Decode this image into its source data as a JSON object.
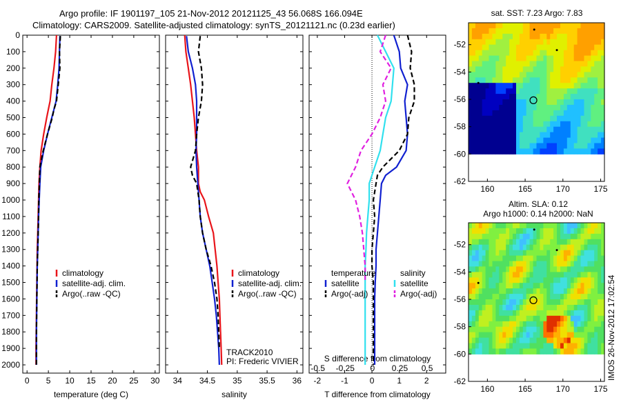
{
  "header": {
    "title_line1": "Argo profile: IF 1901197_105 21-Nov-2012 20121125_43 56.068S 166.094E",
    "title_line2": "Climatology: CARS2009. Satellite-adjusted climatology: synTS_20121121.nc (0.23d earlier)"
  },
  "side_stamp": "IMOS 26-Nov-2012 17:02:54",
  "colors": {
    "climatology": "#e8141a",
    "satellite": "#1020d0",
    "argo": "#000000",
    "salinity_satellite": "#30e0ee",
    "salinity_argo": "#e020e0"
  },
  "chart_data": [
    {
      "type": "line",
      "panel": "temperature",
      "xlabel": "temperature (deg C)",
      "ylabel": "",
      "xlim": [
        -1,
        31
      ],
      "ylim": [
        2050,
        0
      ],
      "xticks": [
        "0",
        "5",
        "10",
        "15",
        "20",
        "25",
        "30"
      ],
      "yticks": [
        "0",
        "100",
        "200",
        "300",
        "400",
        "500",
        "600",
        "700",
        "800",
        "900",
        "1000",
        "1100",
        "1200",
        "1300",
        "1400",
        "1500",
        "1600",
        "1700",
        "1800",
        "1900",
        "2000"
      ],
      "legend": [
        "climatology",
        "satellite-adj. clim.",
        "Argo(..raw -QC)"
      ],
      "series": [
        {
          "name": "climatology",
          "style": "solid",
          "color": "#e8141a",
          "x": [
            6.9,
            6.7,
            6.3,
            5.8,
            5.4,
            5.0,
            4.6,
            3.9,
            3.3,
            3.0,
            2.8,
            2.7,
            2.6,
            2.5,
            2.4,
            2.35,
            2.3,
            2.25,
            2.2,
            2.15,
            2.1,
            2.1
          ],
          "y": [
            0,
            100,
            200,
            300,
            400,
            450,
            500,
            600,
            700,
            800,
            900,
            1000,
            1100,
            1200,
            1300,
            1400,
            1500,
            1600,
            1700,
            1800,
            1900,
            2000
          ]
        },
        {
          "name": "satellite-adj. clim.",
          "style": "solid",
          "color": "#1020d0",
          "x": [
            7.7,
            7.6,
            7.5,
            7.2,
            6.8,
            6.3,
            5.8,
            4.8,
            3.9,
            3.2,
            3.0,
            2.85,
            2.7,
            2.6,
            2.5,
            2.4,
            2.35,
            2.3,
            2.25,
            2.2,
            2.2
          ],
          "y": [
            5,
            100,
            200,
            300,
            400,
            450,
            500,
            600,
            700,
            800,
            900,
            1000,
            1100,
            1200,
            1300,
            1400,
            1500,
            1600,
            1700,
            1800,
            2000
          ]
        },
        {
          "name": "Argo(..raw -QC)",
          "style": "dashed",
          "color": "#000000",
          "x": [
            7.8,
            7.6,
            7.7,
            7.3,
            6.9,
            6.3,
            5.9,
            4.8,
            3.8,
            3.0,
            2.9,
            2.75,
            2.7,
            2.6,
            2.5,
            2.4,
            2.35,
            2.3,
            2.25,
            2.2,
            2.2
          ],
          "y": [
            5,
            100,
            200,
            300,
            400,
            450,
            500,
            600,
            700,
            800,
            900,
            1000,
            1100,
            1200,
            1300,
            1400,
            1500,
            1600,
            1700,
            1800,
            2000
          ]
        }
      ]
    },
    {
      "type": "line",
      "panel": "salinity",
      "xlabel": "salinity",
      "xlim": [
        33.8,
        36.1
      ],
      "ylim": [
        2050,
        0
      ],
      "xticks": [
        "34",
        "34.5",
        "35",
        "35.5",
        "36"
      ],
      "legend": [
        "climatology",
        "satellite-adj. clim.",
        "Argo(..raw -QC)"
      ],
      "annotations": [
        "TRACK2010",
        "PI: Frederic VIVIER"
      ],
      "series": [
        {
          "name": "climatology",
          "style": "solid",
          "color": "#e8141a",
          "x": [
            34.12,
            34.14,
            34.18,
            34.22,
            34.25,
            34.28,
            34.3,
            34.32,
            34.35,
            34.35,
            34.38,
            34.45,
            34.52,
            34.6,
            34.63,
            34.66,
            34.68,
            34.7,
            34.71,
            34.72,
            34.73,
            34.74
          ],
          "y": [
            0,
            100,
            200,
            300,
            400,
            500,
            600,
            700,
            800,
            900,
            950,
            1000,
            1100,
            1200,
            1300,
            1400,
            1500,
            1600,
            1700,
            1800,
            1900,
            2000
          ]
        },
        {
          "name": "satellite-adj. clim.",
          "style": "solid",
          "color": "#1020d0",
          "x": [
            34.15,
            34.18,
            34.25,
            34.3,
            34.32,
            34.32,
            34.32,
            34.31,
            34.32,
            34.34,
            34.36,
            34.38,
            34.42,
            34.48,
            34.54,
            34.58,
            34.62,
            34.65,
            34.67,
            34.69,
            34.7
          ],
          "y": [
            5,
            100,
            200,
            300,
            400,
            500,
            600,
            700,
            800,
            900,
            1000,
            1100,
            1200,
            1300,
            1400,
            1500,
            1600,
            1700,
            1800,
            1900,
            2000
          ]
        },
        {
          "name": "Argo(..raw -QC)",
          "style": "dashed",
          "color": "#000000",
          "x": [
            34.38,
            34.35,
            34.4,
            34.42,
            34.4,
            34.35,
            34.32,
            34.3,
            34.22,
            34.25,
            34.32,
            34.36,
            34.38,
            34.42,
            34.48,
            34.56,
            34.62,
            34.66,
            34.68,
            34.7
          ],
          "y": [
            5,
            100,
            200,
            300,
            400,
            500,
            600,
            700,
            800,
            850,
            900,
            1000,
            1100,
            1200,
            1300,
            1400,
            1500,
            1600,
            1700,
            1900
          ]
        }
      ]
    },
    {
      "type": "line",
      "panel": "difference",
      "xlabel": "T difference from climatology",
      "xlabel_top": "S difference from climatology",
      "xlim": [
        -2.3,
        2.7
      ],
      "ylim": [
        2050,
        0
      ],
      "xticks": [
        "-2",
        "-1",
        "0",
        "1",
        "2"
      ],
      "xticks_top": [
        "-0.5",
        "-0.25",
        "0",
        "0.25",
        "0.5"
      ],
      "legend_groups": [
        {
          "title": "temperature",
          "entries": [
            "satellite",
            "Argo(-adj)"
          ]
        },
        {
          "title": "salinity",
          "entries": [
            "satellite",
            "Argo(-adj)"
          ]
        }
      ],
      "series": [
        {
          "name": "temperature satellite",
          "style": "solid",
          "color": "#1020d0",
          "x": [
            0.8,
            1.0,
            1.05,
            1.3,
            1.2,
            1.25,
            1.3,
            1.25,
            0.9,
            0.5,
            0.35,
            0.3,
            0.25,
            0.2,
            0.15,
            0.15,
            0.12,
            0.1,
            0.1,
            0.1,
            0.1
          ],
          "y": [
            0,
            100,
            200,
            300,
            400,
            500,
            600,
            700,
            800,
            850,
            900,
            1000,
            1100,
            1200,
            1300,
            1400,
            1500,
            1600,
            1700,
            1800,
            2000
          ]
        },
        {
          "name": "temperature Argo(-adj)",
          "style": "dashed",
          "color": "#000000",
          "x": [
            1.3,
            1.45,
            1.4,
            1.55,
            1.55,
            1.35,
            1.3,
            1.0,
            0.4,
            0.2,
            0.15,
            0.05,
            0.1,
            0.05,
            0.0,
            0.0,
            0.05,
            0.05,
            0.05,
            0.05
          ],
          "y": [
            0,
            100,
            200,
            300,
            400,
            500,
            600,
            700,
            800,
            850,
            900,
            1000,
            1100,
            1200,
            1300,
            1400,
            1500,
            1600,
            1700,
            2000
          ]
        },
        {
          "name": "salinity satellite",
          "style": "solid",
          "color": "#30e0ee",
          "x": [
            0.2,
            0.5,
            0.8,
            0.75,
            0.7,
            0.5,
            0.4,
            0.3,
            0.1,
            -0.1,
            -0.1,
            -0.15,
            -0.2,
            -0.22,
            -0.25,
            -0.25,
            -0.25,
            -0.25,
            -0.25,
            -0.25
          ],
          "y": [
            0,
            100,
            200,
            300,
            400,
            500,
            600,
            700,
            800,
            900,
            1000,
            1100,
            1200,
            1300,
            1400,
            1500,
            1600,
            1700,
            1800,
            2000
          ]
        },
        {
          "name": "salinity Argo(-adj)",
          "style": "dashed",
          "color": "#e020e0",
          "x": [
            0.5,
            0.3,
            0.7,
            0.4,
            0.5,
            0.3,
            0.0,
            -0.4,
            -0.6,
            -0.9,
            -0.6,
            -0.45,
            -0.35,
            -0.3,
            -0.25,
            -0.25
          ],
          "y": [
            0,
            100,
            200,
            300,
            400,
            500,
            600,
            700,
            800,
            900,
            1000,
            1100,
            1200,
            1300,
            1400,
            1500
          ]
        }
      ]
    },
    {
      "type": "heatmap",
      "panel": "sst_map",
      "title": "sat. SST: 7.23 Argo: 7.83",
      "xlim": [
        157.5,
        175.5
      ],
      "ylim": [
        -62,
        -50.4
      ],
      "xticks": [
        "160",
        "165",
        "170",
        "175"
      ],
      "yticks": [
        "-52",
        "-54",
        "-56",
        "-58",
        "-60",
        "-62"
      ],
      "profile_location": {
        "lon": 166.094,
        "lat": -56.068
      }
    },
    {
      "type": "heatmap",
      "panel": "sla_map",
      "title": "Altim. SLA: 0.12",
      "subtitle": "Argo h1000: 0.14 h2000: NaN",
      "xlim": [
        157.5,
        175.5
      ],
      "ylim": [
        -62,
        -50.4
      ],
      "xticks": [
        "160",
        "165",
        "170",
        "175"
      ],
      "yticks": [
        "-52",
        "-54",
        "-56",
        "-58",
        "-60",
        "-62"
      ],
      "profile_location": {
        "lon": 166.094,
        "lat": -56.068
      }
    }
  ]
}
